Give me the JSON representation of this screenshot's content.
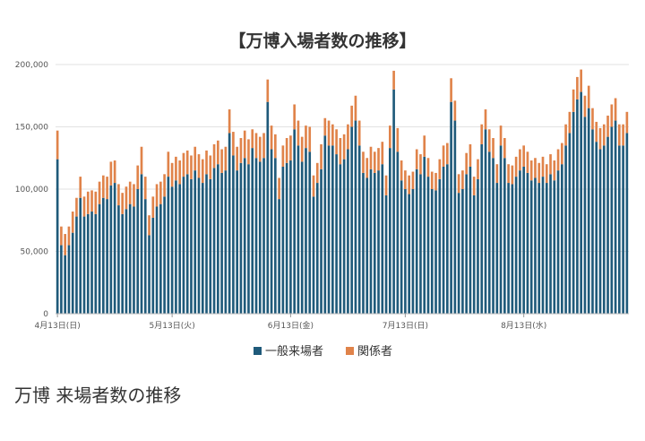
{
  "chart_data": {
    "type": "bar",
    "stacked": true,
    "title": "【万博入場者数の推移】",
    "ylim": [
      0,
      200000
    ],
    "y_ticks": [
      0,
      50000,
      100000,
      150000,
      200000
    ],
    "y_tick_labels": [
      "0",
      "50,000",
      "100,000",
      "150,000",
      "200,000"
    ],
    "x_tick_labels": [
      "4月13日(日)",
      "5月13日(火)",
      "6月13日(金)",
      "7月13日(日)",
      "8月13日(水)"
    ],
    "x_tick_index": [
      0,
      30,
      61,
      91,
      122
    ],
    "grid": true,
    "legend_position": "bottom",
    "categories_start": "2025-04-13",
    "categories_count": 150,
    "series": [
      {
        "name": "一般来場者",
        "color": "#1f5a7a",
        "values": [
          124000,
          55000,
          47000,
          55000,
          65000,
          78000,
          93000,
          78000,
          80000,
          82000,
          80000,
          88000,
          93000,
          92000,
          103000,
          105000,
          87000,
          80000,
          84000,
          88000,
          86000,
          100000,
          112000,
          92000,
          63000,
          77000,
          86000,
          88000,
          94000,
          110000,
          102000,
          107000,
          104000,
          110000,
          112000,
          108000,
          115000,
          109000,
          105000,
          112000,
          108000,
          117000,
          120000,
          113000,
          115000,
          145000,
          127000,
          115000,
          121000,
          125000,
          120000,
          133000,
          125000,
          122000,
          125000,
          170000,
          132000,
          125000,
          92000,
          118000,
          121000,
          123000,
          148000,
          135000,
          122000,
          133000,
          130000,
          94000,
          105000,
          116000,
          143000,
          135000,
          135000,
          128000,
          120000,
          124000,
          132000,
          150000,
          155000,
          135000,
          113000,
          109000,
          116000,
          113000,
          115000,
          120000,
          95000,
          133000,
          180000,
          130000,
          107000,
          100000,
          96000,
          100000,
          116000,
          112000,
          126000,
          110000,
          100000,
          99000,
          108000,
          118000,
          120000,
          170000,
          155000,
          97000,
          100000,
          112000,
          118000,
          95000,
          108000,
          136000,
          148000,
          130000,
          125000,
          105000,
          135000,
          125000,
          105000,
          104000,
          110000,
          115000,
          118000,
          113000,
          107000,
          109000,
          105000,
          110000,
          105000,
          112000,
          107000,
          115000,
          120000,
          135000,
          145000,
          162000,
          172000,
          178000,
          158000,
          165000,
          148000,
          138000,
          132000,
          135000,
          142000,
          150000,
          155000,
          135000,
          135000,
          145000
        ]
      },
      {
        "name": "関係者",
        "color": "#e0834a",
        "values": [
          23000,
          15000,
          17000,
          15000,
          17000,
          15000,
          17000,
          16000,
          18000,
          17000,
          18000,
          18000,
          18000,
          18000,
          19000,
          18000,
          17000,
          17000,
          18000,
          18000,
          18000,
          19000,
          22000,
          18000,
          16000,
          17000,
          18000,
          18000,
          18000,
          20000,
          19000,
          19000,
          19000,
          19000,
          19000,
          19000,
          19000,
          19000,
          19000,
          19000,
          19000,
          19000,
          19000,
          19000,
          19000,
          19000,
          19000,
          19000,
          20000,
          22000,
          20000,
          15000,
          20000,
          20000,
          20000,
          18000,
          19000,
          19000,
          17000,
          17000,
          20000,
          20000,
          20000,
          20000,
          20000,
          18000,
          20000,
          17000,
          16000,
          20000,
          14000,
          20000,
          17000,
          20000,
          21000,
          20000,
          20000,
          17000,
          20000,
          20000,
          17000,
          16000,
          18000,
          17000,
          18000,
          18000,
          16000,
          18000,
          15000,
          19000,
          16000,
          15000,
          15000,
          14000,
          16000,
          16000,
          17000,
          15000,
          14000,
          14000,
          16000,
          17000,
          17000,
          19000,
          16000,
          15000,
          15000,
          17000,
          18000,
          15000,
          16000,
          16000,
          16000,
          18000,
          16000,
          15000,
          16000,
          16000,
          15000,
          15000,
          16000,
          17000,
          17000,
          17000,
          16000,
          16000,
          16000,
          16000,
          15000,
          16000,
          16000,
          17000,
          17000,
          17000,
          17000,
          18000,
          18000,
          18000,
          17000,
          18000,
          17000,
          16000,
          17000,
          17000,
          17000,
          18000,
          18000,
          17000,
          17000,
          17000
        ]
      }
    ]
  },
  "caption": "万博 来場者数の推移"
}
